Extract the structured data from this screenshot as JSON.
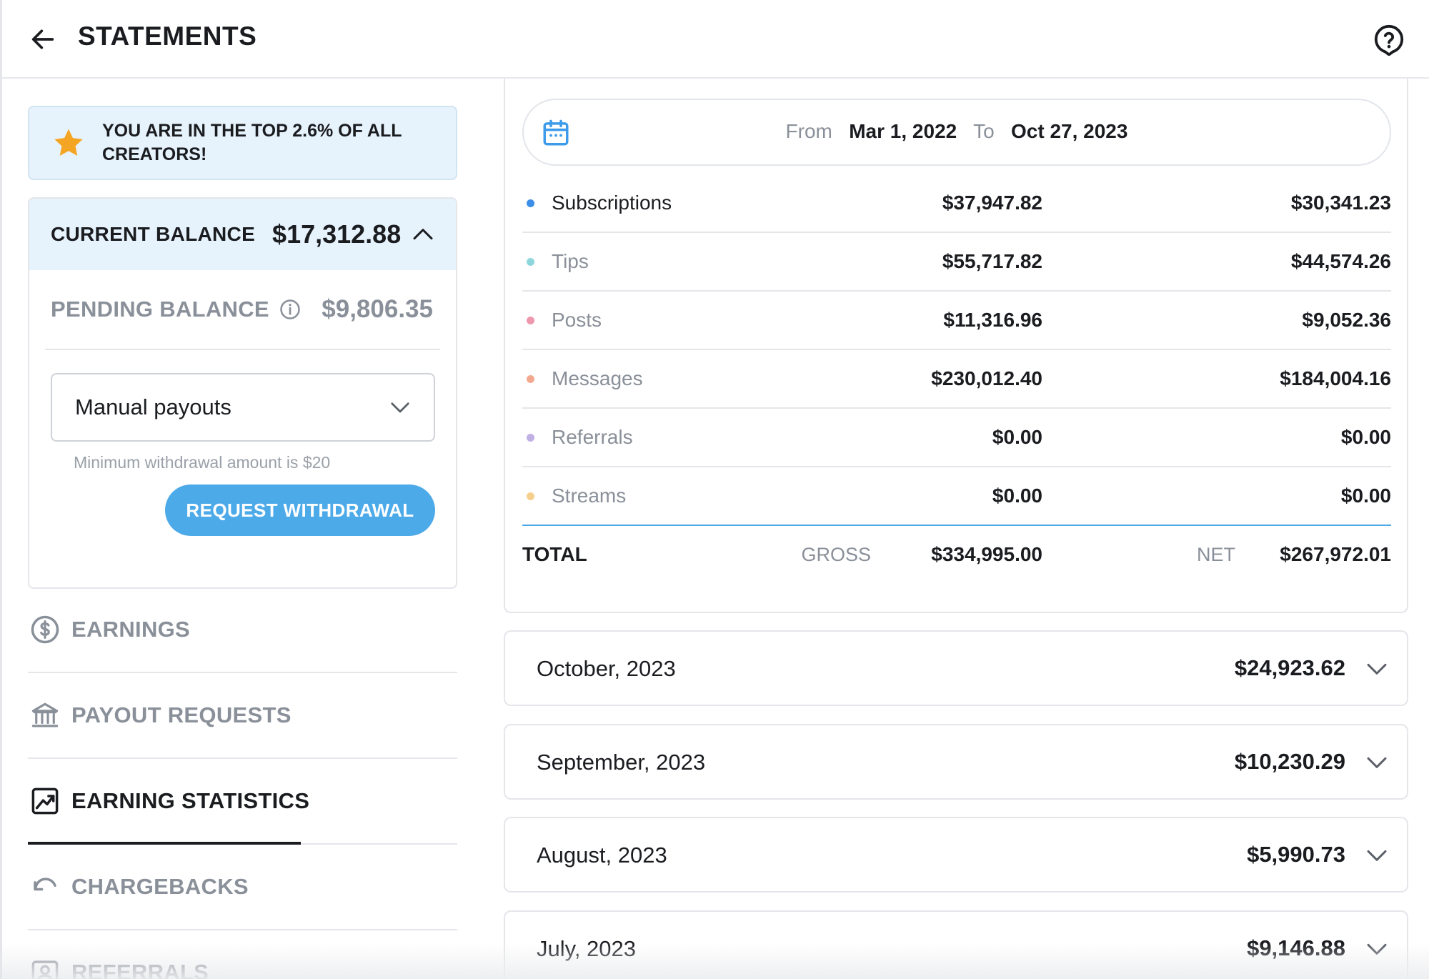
{
  "header": {
    "title": "STATEMENTS",
    "back_icon": "arrow-left-icon",
    "help_icon": "question-bubble-icon"
  },
  "banner": {
    "icon": "star-icon",
    "text": "YOU ARE IN THE TOP 2.6% OF ALL CREATORS!",
    "star_color": "#f5a524"
  },
  "balance": {
    "current_label": "CURRENT BALANCE",
    "current_amount": "$17,312.88",
    "pending_label": "PENDING BALANCE",
    "pending_amount": "$9,806.35",
    "payout_mode": "Manual payouts",
    "hint": "Minimum withdrawal amount is $20",
    "withdraw_label": "REQUEST WITHDRAWAL"
  },
  "nav": [
    {
      "label": "EARNINGS",
      "icon": "dollar-circle-icon",
      "active": false
    },
    {
      "label": "PAYOUT REQUESTS",
      "icon": "bank-icon",
      "active": false
    },
    {
      "label": "EARNING STATISTICS",
      "icon": "chart-trend-icon",
      "active": true
    },
    {
      "label": "CHARGEBACKS",
      "icon": "undo-arrow-icon",
      "active": false
    },
    {
      "label": "REFERRALS",
      "icon": "user-card-icon",
      "active": false
    }
  ],
  "date_range": {
    "from_label": "From",
    "from_date": "Mar 1, 2022",
    "to_label": "To",
    "to_date": "Oct 27, 2023"
  },
  "breakdown": [
    {
      "name": "Subscriptions",
      "gross": "$37,947.82",
      "net": "$30,341.23",
      "color": "#3d8ee8"
    },
    {
      "name": "Tips",
      "gross": "$55,717.82",
      "net": "$44,574.26",
      "color": "#8fd6dc"
    },
    {
      "name": "Posts",
      "gross": "$11,316.96",
      "net": "$9,052.36",
      "color": "#ee98ad"
    },
    {
      "name": "Messages",
      "gross": "$230,012.40",
      "net": "$184,004.16",
      "color": "#f3a98f"
    },
    {
      "name": "Referrals",
      "gross": "$0.00",
      "net": "$0.00",
      "color": "#c0b0e4"
    },
    {
      "name": "Streams",
      "gross": "$0.00",
      "net": "$0.00",
      "color": "#f5cf8e"
    }
  ],
  "total": {
    "label": "TOTAL",
    "gross_label": "GROSS",
    "gross": "$334,995.00",
    "net_label": "NET",
    "net": "$267,972.01"
  },
  "months": [
    {
      "name": "October, 2023",
      "amount": "$24,923.62"
    },
    {
      "name": "September, 2023",
      "amount": "$10,230.29"
    },
    {
      "name": "August, 2023",
      "amount": "$5,990.73"
    },
    {
      "name": "July, 2023",
      "amount": "$9,146.88"
    }
  ],
  "colors": {
    "accent": "#4daae9",
    "banner_bg": "#e7f3fc",
    "muted_text": "#8a9099"
  }
}
